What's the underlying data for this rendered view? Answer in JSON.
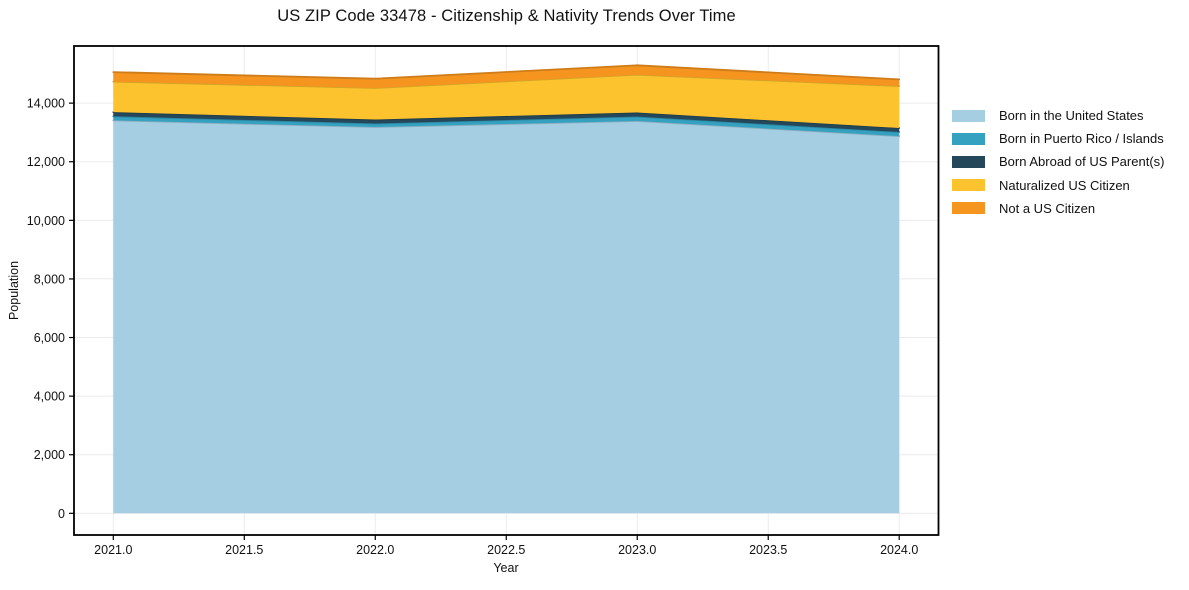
{
  "title": "US ZIP Code 33478 - Citizenship & Nativity Trends Over Time",
  "chart_data": {
    "type": "area",
    "stacked": true,
    "title": "US ZIP Code 33478 - Citizenship & Nativity Trends Over Time",
    "xlabel": "Year",
    "ylabel": "Population",
    "x": [
      2021,
      2022,
      2023,
      2024
    ],
    "series": [
      {
        "name": "Born in the United States",
        "color": "#a5cee3",
        "values": [
          13410,
          13185,
          13390,
          12875
        ]
      },
      {
        "name": "Born in Puerto Rico / Islands",
        "color": "#35a1c1",
        "values": [
          140,
          120,
          150,
          140
        ]
      },
      {
        "name": "Born Abroad of US Parent(s)",
        "color": "#24485a",
        "values": [
          145,
          135,
          140,
          135
        ]
      },
      {
        "name": "Naturalized US Citizen",
        "color": "#fcc32f",
        "values": [
          1040,
          1075,
          1290,
          1430
        ]
      },
      {
        "name": "Not a US Citizen",
        "color": "#f5941f",
        "values": [
          325,
          320,
          320,
          230
        ]
      }
    ],
    "stacked_totals": [
      15060,
      14835,
      15290,
      14810
    ],
    "xlim": [
      2020.85,
      2024.15
    ],
    "ylim": [
      -740,
      15950
    ],
    "xticks": [
      2021.0,
      2021.5,
      2022.0,
      2022.5,
      2023.0,
      2023.5,
      2024.0
    ],
    "xtick_labels": [
      "2021.0",
      "2021.5",
      "2022.0",
      "2022.5",
      "2023.0",
      "2023.5",
      "2024.0"
    ],
    "yticks": [
      0,
      2000,
      4000,
      6000,
      8000,
      10000,
      12000,
      14000
    ],
    "ytick_labels": [
      "0",
      "2,000",
      "4,000",
      "6,000",
      "8,000",
      "10,000",
      "12,000",
      "14,000"
    ],
    "grid": true,
    "grid_color": "#ebebeb",
    "spine_color": "#000000",
    "legend_position": "right"
  }
}
